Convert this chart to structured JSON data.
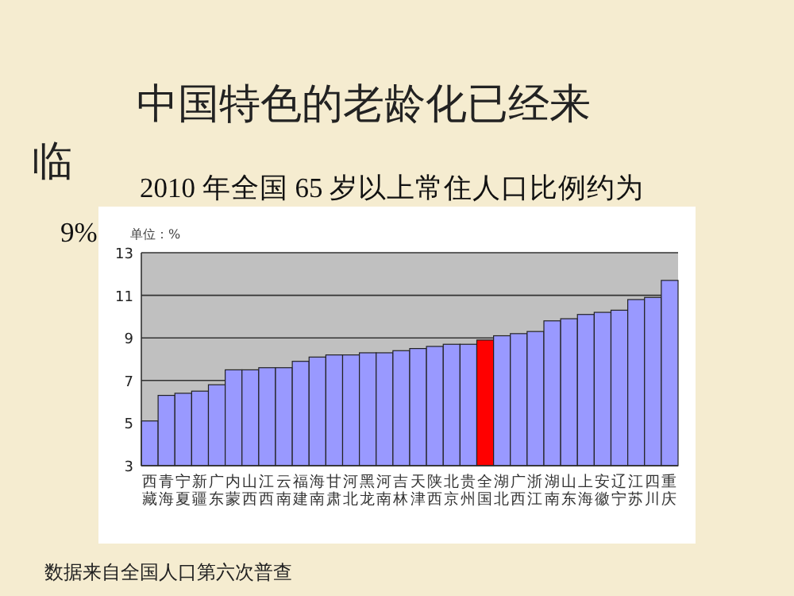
{
  "chart_data": {
    "type": "bar",
    "title": "中国特色的老龄化已经来临",
    "subtitle": "2010 年全国 65 岁以上常住人口比例约为9%",
    "ylabel": "单位：%",
    "categories": [
      "西藏",
      "青海",
      "宁夏",
      "新疆",
      "广东",
      "内蒙",
      "山西",
      "江西",
      "云南",
      "福建",
      "海南",
      "甘肃",
      "河北",
      "黑龙",
      "河南",
      "吉林",
      "天津",
      "陕西",
      "北京",
      "贵州",
      "全国",
      "湖北",
      "广西",
      "浙江",
      "湖南",
      "山东",
      "上海",
      "安徽",
      "辽宁",
      "江苏",
      "四川",
      "重庆"
    ],
    "values": [
      5.1,
      6.3,
      6.4,
      6.5,
      6.8,
      7.5,
      7.5,
      7.6,
      7.6,
      7.9,
      8.1,
      8.2,
      8.2,
      8.3,
      8.3,
      8.4,
      8.5,
      8.6,
      8.7,
      8.7,
      8.9,
      9.1,
      9.2,
      9.3,
      9.8,
      9.9,
      10.1,
      10.2,
      10.3,
      10.8,
      10.9,
      11.7
    ],
    "colors": [
      "#9999ff",
      "#9999ff",
      "#9999ff",
      "#9999ff",
      "#9999ff",
      "#9999ff",
      "#9999ff",
      "#9999ff",
      "#9999ff",
      "#9999ff",
      "#9999ff",
      "#9999ff",
      "#9999ff",
      "#9999ff",
      "#9999ff",
      "#9999ff",
      "#9999ff",
      "#9999ff",
      "#9999ff",
      "#9999ff",
      "#ff0000",
      "#9999ff",
      "#9999ff",
      "#9999ff",
      "#9999ff",
      "#9999ff",
      "#9999ff",
      "#9999ff",
      "#9999ff",
      "#9999ff",
      "#9999ff",
      "#9999ff"
    ],
    "ylim": [
      3,
      13
    ],
    "yticks": [
      3,
      5,
      7,
      9,
      11,
      13
    ],
    "grid": "y",
    "annotations": [
      "数据来自全国人口第六次普查"
    ]
  }
}
